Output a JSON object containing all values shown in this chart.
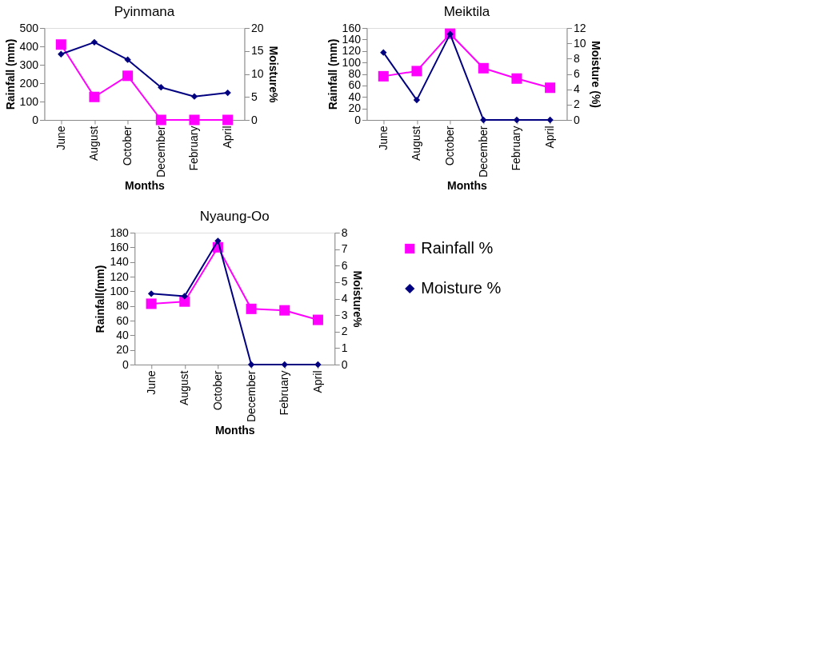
{
  "chart_data": [
    {
      "type": "line",
      "title": "Pyinmana",
      "xlabel": "Months",
      "ylabel": "Rainfall (mm)",
      "y2label": "Moisture%",
      "categories": [
        "June",
        "August",
        "October",
        "December",
        "February",
        "April"
      ],
      "ylim": [
        0,
        500
      ],
      "yticks": [
        0,
        100,
        200,
        300,
        400,
        500
      ],
      "y2lim": [
        0,
        20
      ],
      "y2ticks": [
        0,
        5,
        10,
        15,
        20
      ],
      "grid": false,
      "legend": false,
      "series": [
        {
          "color": "#ff00ff",
          "marker": "square",
          "values": [
            410,
            125,
            240,
            0,
            0,
            0
          ]
        },
        {
          "color": "#000080",
          "marker": "diamond",
          "axis": "y2",
          "values": [
            14.3,
            16.9,
            13.1,
            7.1,
            5.1,
            5.9
          ]
        }
      ]
    },
    {
      "type": "line",
      "title": "Meiktila",
      "xlabel": "Months",
      "ylabel": "Rainfall (mm)",
      "y2label": "Moisture (%)",
      "categories": [
        "June",
        "August",
        "October",
        "December",
        "February",
        "April"
      ],
      "ylim": [
        0,
        160
      ],
      "yticks": [
        0,
        20,
        40,
        60,
        80,
        100,
        120,
        140,
        160
      ],
      "y2lim": [
        0,
        12
      ],
      "y2ticks": [
        0,
        2,
        4,
        6,
        8,
        10,
        12
      ],
      "grid": false,
      "legend": false,
      "series": [
        {
          "color": "#ff00ff",
          "marker": "square",
          "values": [
            76,
            85,
            150,
            90,
            72,
            56
          ]
        },
        {
          "color": "#000080",
          "marker": "diamond",
          "axis": "y2",
          "values": [
            8.8,
            2.6,
            11.2,
            0,
            0,
            0
          ]
        }
      ]
    },
    {
      "type": "line",
      "title": "Nyaung-Oo",
      "xlabel": "Months",
      "ylabel": "Rainfall(mm)",
      "y2label": "Moisture%",
      "categories": [
        "June",
        "August",
        "October",
        "December",
        "February",
        "April"
      ],
      "ylim": [
        0,
        180
      ],
      "yticks": [
        0,
        20,
        40,
        60,
        80,
        100,
        120,
        140,
        160,
        180
      ],
      "y2lim": [
        0,
        8
      ],
      "y2ticks": [
        0,
        1,
        2,
        3,
        4,
        5,
        6,
        7,
        8
      ],
      "grid": false,
      "legend": "right",
      "series": [
        {
          "name": "Rainfall %",
          "color": "#ff00ff",
          "marker": "square",
          "values": [
            83,
            86,
            160,
            76,
            74,
            61
          ]
        },
        {
          "name": "Moisture %",
          "color": "#000080",
          "marker": "diamond",
          "axis": "y2",
          "values": [
            4.3,
            4.15,
            7.5,
            0,
            0,
            0
          ]
        }
      ]
    }
  ]
}
